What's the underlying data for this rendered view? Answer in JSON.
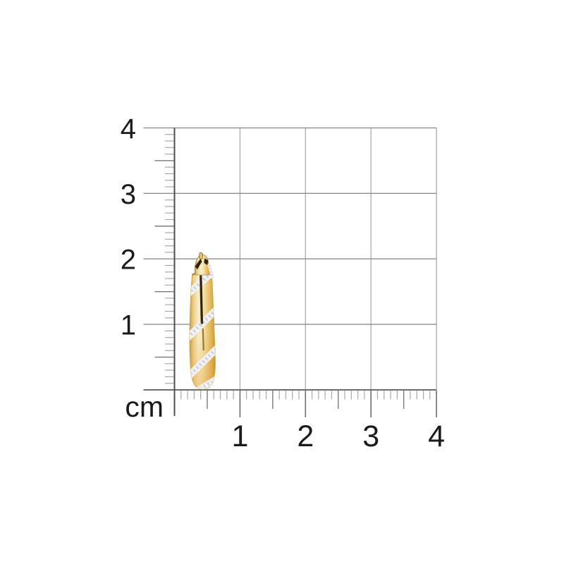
{
  "page": {
    "background_color": "#ffffff",
    "content": "product-photo-on-centimeter-grid"
  },
  "ruler": {
    "unit": "cm",
    "range_cm": [
      0,
      4
    ],
    "minor_ticks_per_cm": 10,
    "left_labels": [
      {
        "label": "4",
        "cm": 4
      },
      {
        "label": "3",
        "cm": 3
      },
      {
        "label": "2",
        "cm": 2
      },
      {
        "label": "1",
        "cm": 1
      }
    ],
    "bottom_labels": [
      {
        "label": "1",
        "cm": 1
      },
      {
        "label": "2",
        "cm": 2
      },
      {
        "label": "3",
        "cm": 3
      },
      {
        "label": "4",
        "cm": 4
      }
    ],
    "colors": {
      "grid_line": "#b1b1b5",
      "major_line": "#8e8e91",
      "baseline": "#58585a",
      "ruler_line": "#4e4e50",
      "major_tick": "#6e6e71",
      "medium_tick": "#7a7a7d",
      "minor_tick": "#a8a8ab",
      "label_text": "#1b1b1b"
    }
  },
  "product": {
    "item": "yellow-gold-hoop-earring-with-diagonal-glitter-stripes",
    "approx_height_cm": 2.0,
    "colors": {
      "gold_light": "#f9efc9",
      "gold_mid": "#eac673",
      "gold_deep": "#c79a38",
      "gold_rim": "#c08c2e",
      "glitter_white": "#f2f2f5",
      "glitter_speckle": "#c6c6d2",
      "clasp_shadow": "#2d2310",
      "slit_dark": "#453412"
    }
  }
}
